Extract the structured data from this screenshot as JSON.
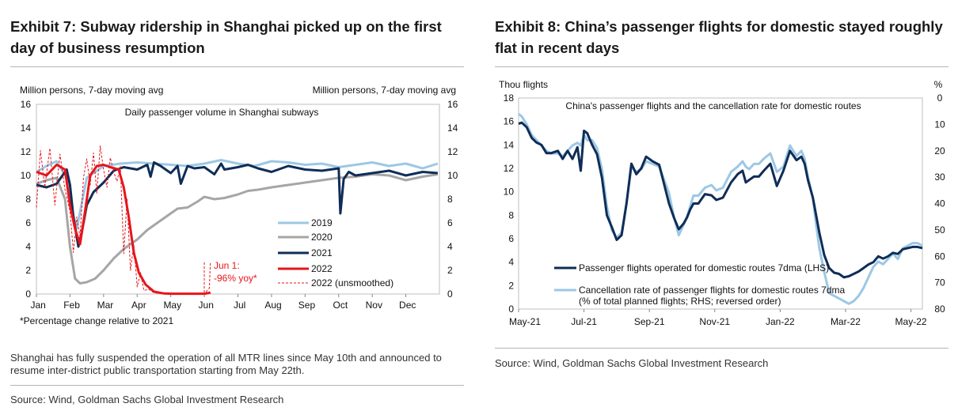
{
  "exhibit7": {
    "title": "Exhibit 7: Subway ridership in Shanghai picked up on the first day of business resumption",
    "note": "Shanghai has fully suspended the operation of all MTR lines since May 10th and announced to resume inter-district public transportation starting from May 22th.",
    "source": "Source: Wind, Goldman Sachs Global Investment Research"
  },
  "exhibit8": {
    "title": "Exhibit 8: China’s passenger flights for domestic stayed roughly flat in recent days",
    "source": "Source: Wind, Goldman Sachs Global Investment Research"
  },
  "colors": {
    "c2019": "#9cc8e4",
    "c2020": "#a6a6a6",
    "c2021": "#0f2d57",
    "c2022": "#e8141b",
    "flights": "#0f2d57",
    "cancel": "#9cc8e4"
  },
  "chart_data": [
    {
      "type": "line",
      "title": "Daily passenger volume in Shanghai subways",
      "ylabel_left": "Million persons, 7-day moving avg",
      "ylabel_right": "Million persons, 7-day moving avg",
      "ylim": [
        0,
        16
      ],
      "yticks": [
        "0",
        "2",
        "4",
        "6",
        "8",
        "10",
        "12",
        "14",
        "16"
      ],
      "categories": [
        "Jan",
        "Feb",
        "Mar",
        "Apr",
        "May",
        "Jun",
        "Jul",
        "Aug",
        "Sep",
        "Oct",
        "Nov",
        "Dec"
      ],
      "footnote": "*Percentage change relative to 2021",
      "annotation": {
        "line1": "Jun 1:",
        "line2": "-96% yoy*"
      },
      "legend": [
        "2019",
        "2020",
        "2021",
        "2022",
        "2022 (unsmoothed)"
      ],
      "series": [
        {
          "name": "2019",
          "x": [
            0,
            0.3,
            0.6,
            0.9,
            1.05,
            1.2,
            1.5,
            2,
            2.5,
            3,
            3.5,
            4,
            4.5,
            5,
            5.5,
            6,
            6.5,
            7,
            7.5,
            8,
            8.5,
            9,
            9.5,
            10,
            10.5,
            11,
            11.5,
            11.95
          ],
          "values": [
            10.3,
            10.8,
            11.2,
            9.8,
            7.2,
            5.5,
            9.8,
            10.8,
            11.0,
            11.1,
            11.0,
            10.9,
            10.8,
            11.0,
            11.3,
            11.0,
            10.8,
            11.2,
            11.1,
            10.9,
            11.0,
            10.7,
            10.9,
            11.1,
            10.8,
            11.0,
            10.6,
            11.0
          ]
        },
        {
          "name": "2020",
          "x": [
            0,
            0.3,
            0.6,
            0.85,
            1,
            1.15,
            1.3,
            1.5,
            1.75,
            2,
            2.3,
            2.6,
            3,
            3.3,
            3.6,
            3.9,
            4.2,
            4.5,
            4.8,
            5,
            5.3,
            5.6,
            6,
            6.3,
            6.6,
            7,
            7.5,
            8,
            8.5,
            9,
            9.5,
            10,
            10.5,
            11,
            11.5,
            11.95
          ],
          "values": [
            9.3,
            9.6,
            9.8,
            8.0,
            4.0,
            1.3,
            0.9,
            1.0,
            1.3,
            2.0,
            3.0,
            3.8,
            4.6,
            5.4,
            6.0,
            6.6,
            7.2,
            7.3,
            7.8,
            8.2,
            8.0,
            8.1,
            8.4,
            8.7,
            8.8,
            9.0,
            9.2,
            9.4,
            9.6,
            9.8,
            9.9,
            10.1,
            10.0,
            9.6,
            9.9,
            10.1
          ]
        },
        {
          "name": "2021",
          "x": [
            0,
            0.3,
            0.6,
            0.9,
            1,
            1.1,
            1.25,
            1.35,
            1.5,
            1.7,
            2,
            2.3,
            2.6,
            3,
            3.3,
            3.4,
            3.5,
            3.7,
            4,
            4.2,
            4.3,
            4.5,
            4.7,
            5,
            5.3,
            5.5,
            5.6,
            6,
            6.3,
            6.6,
            7,
            7.5,
            8,
            8.5,
            9,
            9.05,
            9.15,
            9.3,
            9.5,
            10,
            10.5,
            11,
            11.5,
            11.95
          ],
          "values": [
            9.2,
            9.0,
            9.3,
            10.5,
            9.2,
            6.5,
            4.0,
            5.2,
            7.5,
            8.6,
            9.4,
            10.4,
            10.7,
            10.5,
            10.9,
            9.9,
            11.1,
            10.8,
            10.2,
            10.8,
            9.3,
            10.8,
            10.6,
            10.7,
            10.1,
            11.0,
            10.5,
            10.7,
            10.9,
            10.6,
            10.3,
            10.8,
            10.5,
            10.4,
            10.6,
            6.8,
            9.7,
            10.3,
            10.0,
            10.2,
            10.4,
            10.0,
            10.3,
            10.2
          ]
        },
        {
          "name": "2022",
          "x": [
            0,
            0.3,
            0.6,
            0.85,
            1,
            1.15,
            1.3,
            1.45,
            1.6,
            1.8,
            2,
            2.2,
            2.45,
            2.6,
            2.75,
            2.9,
            3.05,
            3.25,
            3.5,
            3.8,
            4,
            4.3,
            4.6,
            5,
            5.15,
            5.18
          ],
          "values": [
            10.3,
            10.0,
            10.9,
            10.5,
            7.5,
            5.5,
            4.2,
            7.0,
            10.0,
            10.8,
            10.9,
            10.7,
            10.5,
            9.0,
            6.5,
            3.5,
            1.8,
            0.8,
            0.2,
            0.05,
            0.03,
            0.03,
            0.03,
            0.03,
            0.1,
            0.15
          ]
        },
        {
          "name": "2022 (unsmoothed)",
          "x": [
            0,
            0.12,
            0.25,
            0.4,
            0.55,
            0.7,
            0.85,
            1,
            1.1,
            1.2,
            1.3,
            1.4,
            1.5,
            1.6,
            1.7,
            1.8,
            1.9,
            2,
            2.1,
            2.2,
            2.3,
            2.4,
            2.5,
            2.6,
            2.7,
            2.8,
            2.9,
            3,
            3.1,
            3.2,
            3.35,
            3.5,
            3.8,
            4,
            4.5,
            5,
            5.15,
            5.18
          ],
          "values": [
            7.3,
            12.1,
            9.0,
            12.3,
            7.5,
            11.8,
            8.8,
            7.0,
            3.5,
            6.5,
            4.8,
            9.8,
            11.4,
            9.2,
            11.9,
            8.5,
            12.5,
            10.5,
            9.0,
            11.5,
            10.3,
            9.5,
            10.8,
            3.4,
            8.0,
            2.0,
            4.2,
            0.6,
            1.8,
            0.3,
            0.4,
            0.1,
            0.05,
            0.03,
            0.03,
            0.03,
            0.5,
            2.6
          ]
        }
      ]
    },
    {
      "type": "line",
      "title": "China's passenger flights and the cancellation rate for domestic routes",
      "ylabel_left": "Thou flights",
      "ylabel_right": "%",
      "ylim_left": [
        0,
        18
      ],
      "ylim_right_reversed": [
        0,
        80
      ],
      "yticks_left": [
        "0",
        "2",
        "4",
        "6",
        "8",
        "10",
        "12",
        "14",
        "16",
        "18"
      ],
      "yticks_right": [
        "0",
        "10",
        "20",
        "30",
        "40",
        "50",
        "60",
        "70",
        "80"
      ],
      "x_labels": [
        "May-21",
        "Jul-21",
        "Sep-21",
        "Nov-21",
        "Jan-22",
        "Mar-22",
        "May-22"
      ],
      "legend": {
        "flights": "Passenger flights operated for domestic routes 7dma (LHS)",
        "cancel_line1": "Cancellation rate of passenger flights for domestic routes 7dma",
        "cancel_line2": "(% of total planned flights; RHS; reversed order)"
      },
      "series": [
        {
          "name": "Passenger flights operated for domestic routes 7dma (LHS)",
          "axis": "left",
          "x": [
            0,
            0.1,
            0.25,
            0.4,
            0.55,
            0.7,
            0.85,
            1,
            1.2,
            1.35,
            1.5,
            1.65,
            1.8,
            1.9,
            2,
            2.1,
            2.25,
            2.4,
            2.55,
            2.7,
            2.85,
            3,
            3.15,
            3.3,
            3.45,
            3.6,
            3.75,
            3.9,
            4.1,
            4.3,
            4.6,
            4.75,
            4.9,
            5.05,
            5.15,
            5.25,
            5.35,
            5.5,
            5.7,
            5.9,
            6.05,
            6.25,
            6.5,
            6.7,
            6.85,
            6.95,
            7.05,
            7.2,
            7.35,
            7.5,
            7.7,
            7.9,
            8.1,
            8.3,
            8.5,
            8.65,
            8.75,
            8.85,
            9,
            9.1,
            9.2,
            9.35,
            9.5,
            9.65,
            9.8,
            9.95,
            10.1,
            10.25,
            10.4,
            10.55,
            10.7,
            10.85,
            11,
            11.15,
            11.3,
            11.45,
            11.6,
            11.75,
            11.9,
            12.05,
            12.2,
            12.35
          ],
          "values": [
            15.8,
            15.9,
            15.5,
            14.6,
            14.2,
            14.0,
            13.3,
            13.3,
            13.5,
            12.8,
            13.5,
            12.8,
            13.8,
            11.8,
            15.2,
            15.0,
            14.0,
            13.2,
            11.2,
            8.0,
            7.0,
            5.9,
            6.3,
            9.0,
            12.4,
            11.5,
            12.0,
            13.0,
            12.6,
            12.3,
            9.0,
            7.8,
            6.8,
            7.3,
            7.8,
            8.5,
            9.0,
            9.0,
            9.8,
            9.7,
            9.3,
            9.5,
            10.8,
            11.5,
            11.8,
            10.8,
            11.0,
            11.3,
            11.3,
            11.8,
            12.4,
            10.5,
            11.8,
            13.5,
            12.7,
            13.0,
            12.4,
            11.0,
            9.5,
            8.0,
            6.5,
            4.6,
            3.5,
            3.1,
            3.0,
            2.7,
            2.8,
            3.0,
            3.2,
            3.5,
            3.8,
            4.0,
            4.5,
            4.3,
            4.5,
            4.8,
            4.7,
            5.1,
            5.2,
            5.3,
            5.3,
            5.2
          ]
        },
        {
          "name": "Cancellation rate of passenger flights for domestic routes 7dma",
          "axis": "right",
          "x": [
            0,
            0.1,
            0.25,
            0.4,
            0.55,
            0.7,
            0.85,
            1,
            1.2,
            1.35,
            1.5,
            1.65,
            1.8,
            1.9,
            2,
            2.1,
            2.25,
            2.4,
            2.55,
            2.7,
            2.85,
            3,
            3.15,
            3.3,
            3.45,
            3.6,
            3.75,
            3.9,
            4.1,
            4.3,
            4.6,
            4.75,
            4.9,
            5.05,
            5.15,
            5.25,
            5.35,
            5.5,
            5.7,
            5.9,
            6.05,
            6.25,
            6.5,
            6.7,
            6.85,
            6.95,
            7.05,
            7.2,
            7.35,
            7.5,
            7.7,
            7.9,
            8.1,
            8.3,
            8.5,
            8.65,
            8.75,
            8.85,
            9,
            9.1,
            9.2,
            9.35,
            9.5,
            9.65,
            9.8,
            9.95,
            10.1,
            10.25,
            10.4,
            10.55,
            10.7,
            10.85,
            11,
            11.15,
            11.3,
            11.45,
            11.6,
            11.75,
            11.9,
            12.05,
            12.2,
            12.35
          ],
          "values": [
            6,
            7,
            10,
            14,
            16,
            18,
            20,
            21,
            21,
            22,
            20,
            18,
            17,
            18,
            14,
            16,
            16,
            19,
            27,
            41,
            50,
            53,
            51,
            40,
            26,
            28,
            27,
            24,
            25,
            26,
            36,
            45,
            52,
            48,
            45,
            41,
            37,
            37,
            34,
            33,
            35,
            34,
            28,
            26,
            24,
            26,
            27,
            25,
            25,
            23,
            21,
            28,
            26,
            18,
            22,
            20,
            23,
            30,
            38,
            48,
            57,
            66,
            74,
            75,
            76,
            77,
            78,
            77,
            75,
            72,
            68,
            64,
            62,
            63,
            61,
            59,
            61,
            57,
            56,
            55,
            55,
            56
          ]
        }
      ]
    }
  ]
}
